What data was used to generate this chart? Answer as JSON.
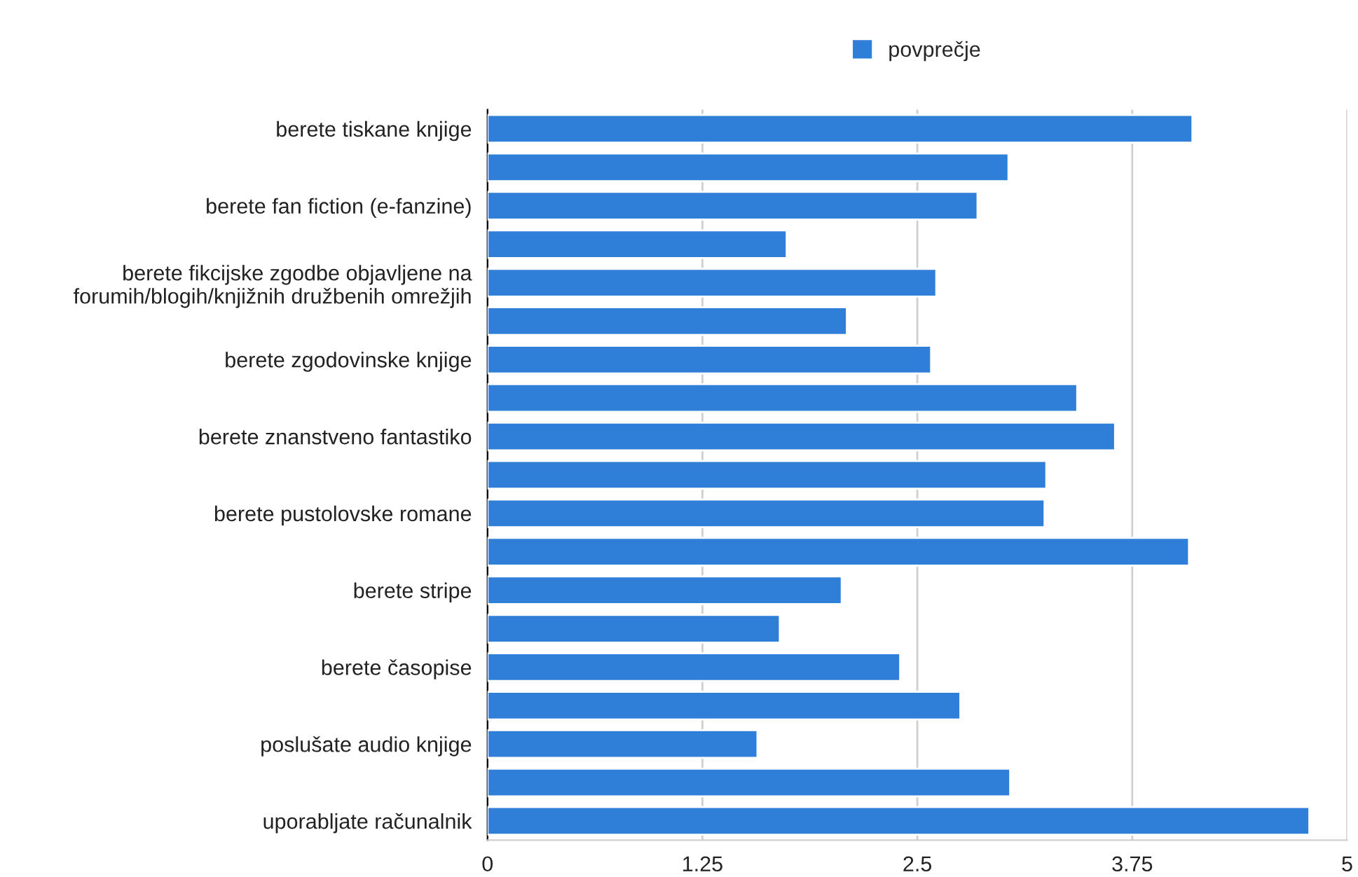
{
  "chart_data": {
    "type": "bar",
    "orientation": "horizontal",
    "categories": [
      "berete tiskane knjige",
      null,
      "berete fan fiction (e-fanzine)",
      null,
      "berete fikcijske zgodbe objavljene na\nforumih/blogih/knjižnih družbenih omrežjih",
      null,
      "berete zgodovinske knjige",
      null,
      "berete znanstveno fantastiko",
      null,
      "berete pustolovske romane",
      null,
      "berete stripe",
      null,
      "berete časopise",
      null,
      "poslušate audio knjige",
      null,
      "uporabljate računalnik"
    ],
    "series": [
      {
        "name": "povprečje",
        "color": "#2f7fd8",
        "values": [
          4.1,
          3.03,
          2.85,
          1.74,
          2.61,
          2.09,
          2.58,
          3.43,
          3.65,
          3.25,
          3.24,
          4.08,
          2.06,
          1.7,
          2.4,
          2.75,
          1.57,
          3.04,
          4.78
        ]
      }
    ],
    "xlim": [
      0,
      5
    ],
    "xticks": [
      0,
      1.25,
      2.5,
      3.75,
      5
    ],
    "grid": "x",
    "legend": "top"
  }
}
